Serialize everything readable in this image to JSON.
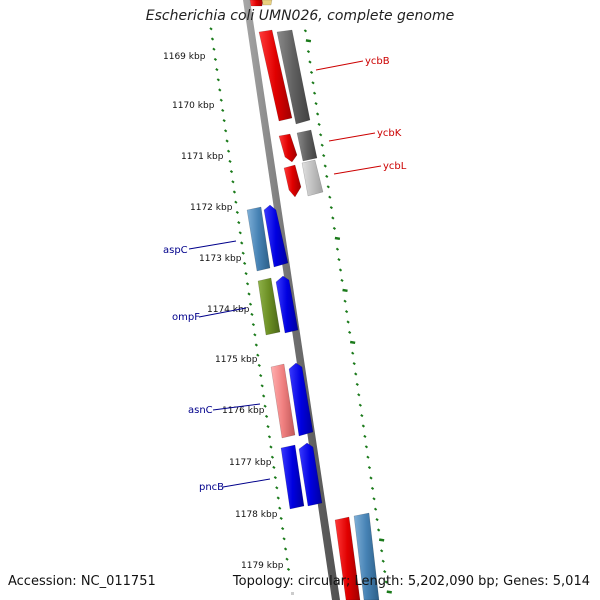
{
  "title": "Escherichia coli UMN026, complete genome",
  "accession": "Accession: NC_011751",
  "summary": "Topology: circular; Length: 5,202,090 bp; Genes: 5,014",
  "colors": {
    "red": "#e00000",
    "blue": "#0000e0",
    "steelblue": "#4682b4",
    "gray": "#606060",
    "lightgray": "#c0c0c0",
    "olive": "#6b8e23",
    "pink": "#f08080",
    "tick_green": "#1a7a1a",
    "label_red": "#cc0000",
    "label_blue": "#00008b",
    "backbone": "#7a7a7a"
  },
  "ruler": [
    {
      "label": "1169 kbp"
    },
    {
      "label": "1170 kbp"
    },
    {
      "label": "1171 kbp"
    },
    {
      "label": "1172 kbp"
    },
    {
      "label": "1173 kbp"
    },
    {
      "label": "1174 kbp"
    },
    {
      "label": "1175 kbp"
    },
    {
      "label": "1176 kbp"
    },
    {
      "label": "1177 kbp"
    },
    {
      "label": "1178 kbp"
    },
    {
      "label": "1179 kbp"
    }
  ],
  "genes": [
    {
      "name": "ycbB"
    },
    {
      "name": "ycbK"
    },
    {
      "name": "ycbL"
    },
    {
      "name": "aspC"
    },
    {
      "name": "ompF"
    },
    {
      "name": "asnC"
    },
    {
      "name": "pncB"
    }
  ]
}
